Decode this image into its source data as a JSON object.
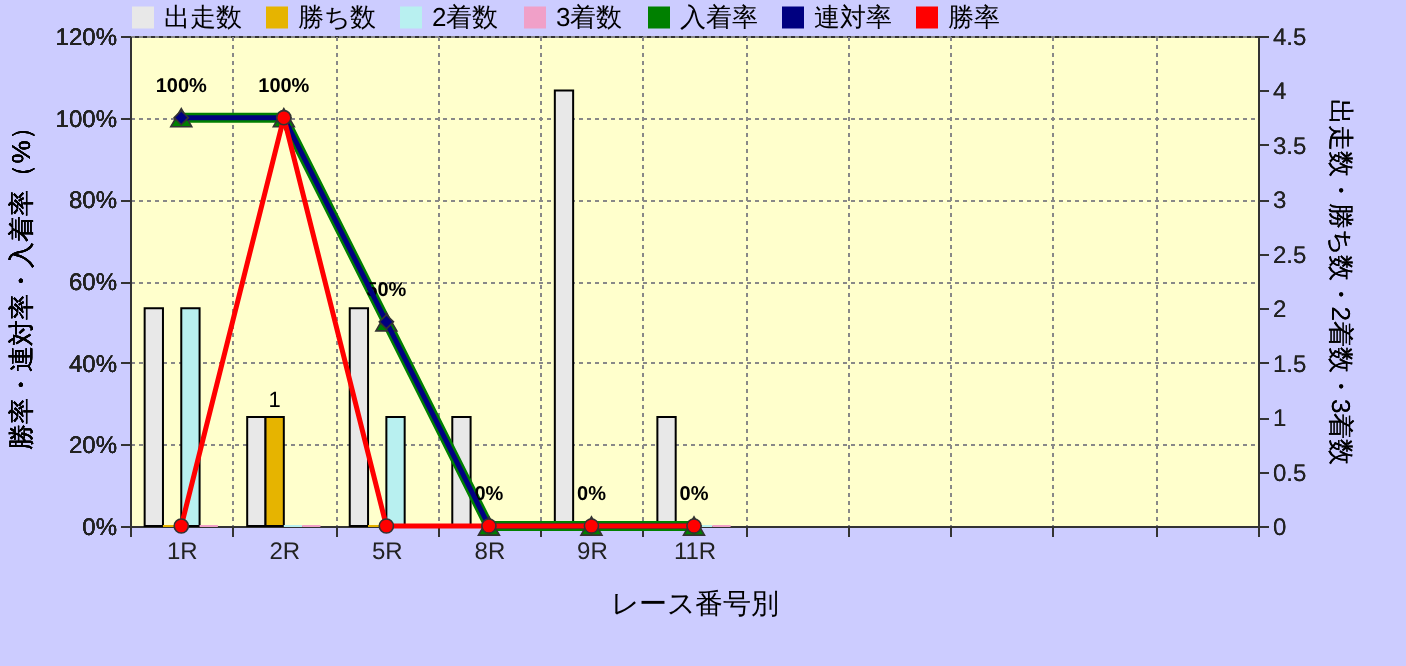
{
  "chart_data": {
    "type": "bar",
    "xlabel": "レース番号別",
    "ylabel": "勝率・連対率・入着率（%）",
    "y2label": "出走数・勝ち数・2着数・3着数",
    "categories": [
      "1R",
      "2R",
      "5R",
      "8R",
      "9R",
      "11R",
      null,
      null,
      null,
      null,
      null
    ],
    "series": [
      {
        "name": "出走数",
        "color": "#e8e8e8",
        "axis": "y2",
        "values": [
          2,
          1,
          2,
          1,
          4,
          1,
          null,
          null,
          null,
          null,
          null
        ]
      },
      {
        "name": "勝ち数",
        "color": "#e6b400",
        "axis": "y2",
        "values": [
          0,
          1,
          0,
          0,
          0,
          0,
          null,
          null,
          null,
          null,
          null
        ],
        "value_labels": [
          null,
          "1",
          null,
          null,
          null,
          null,
          null,
          null,
          null,
          null,
          null
        ]
      },
      {
        "name": "2着数",
        "color": "#b8f0f0",
        "axis": "y2",
        "values": [
          2,
          0,
          1,
          0,
          0,
          0,
          null,
          null,
          null,
          null,
          null
        ]
      },
      {
        "name": "3着数",
        "color": "#f0a0c8",
        "axis": "y2",
        "values": [
          0,
          0,
          0,
          0,
          0,
          0,
          null,
          null,
          null,
          null,
          null
        ]
      },
      {
        "name": "入着率",
        "type": "line",
        "marker": "triangle",
        "color": "#008000",
        "values": [
          100,
          100,
          50,
          0,
          0,
          0,
          null,
          null,
          null,
          null,
          null
        ],
        "value_labels": [
          "100%",
          "100%",
          "50%",
          "0%",
          "0%",
          "0%",
          null,
          null,
          null,
          null,
          null
        ]
      },
      {
        "name": "連対率",
        "type": "line",
        "marker": "diamond",
        "color": "#000080",
        "values": [
          100,
          100,
          50,
          0,
          0,
          0,
          null,
          null,
          null,
          null,
          null
        ]
      },
      {
        "name": "勝率",
        "type": "line",
        "marker": "circle",
        "color": "#ff0000",
        "values": [
          0,
          100,
          0,
          0,
          0,
          0,
          null,
          null,
          null,
          null,
          null
        ]
      }
    ],
    "ylim": [
      0,
      120
    ],
    "yticks": [
      {
        "value": 0,
        "label": "0%"
      },
      {
        "value": 20,
        "label": "20%"
      },
      {
        "value": 40,
        "label": "40%"
      },
      {
        "value": 60,
        "label": "60%"
      },
      {
        "value": 80,
        "label": "80%"
      },
      {
        "value": 100,
        "label": "100%"
      },
      {
        "value": 120,
        "label": "120%"
      }
    ],
    "y2lim": [
      0,
      4.5
    ],
    "y2ticks": [
      0,
      0.5,
      1,
      1.5,
      2,
      2.5,
      3,
      3.5,
      4,
      4.5
    ],
    "grid": true,
    "legend": "top"
  }
}
